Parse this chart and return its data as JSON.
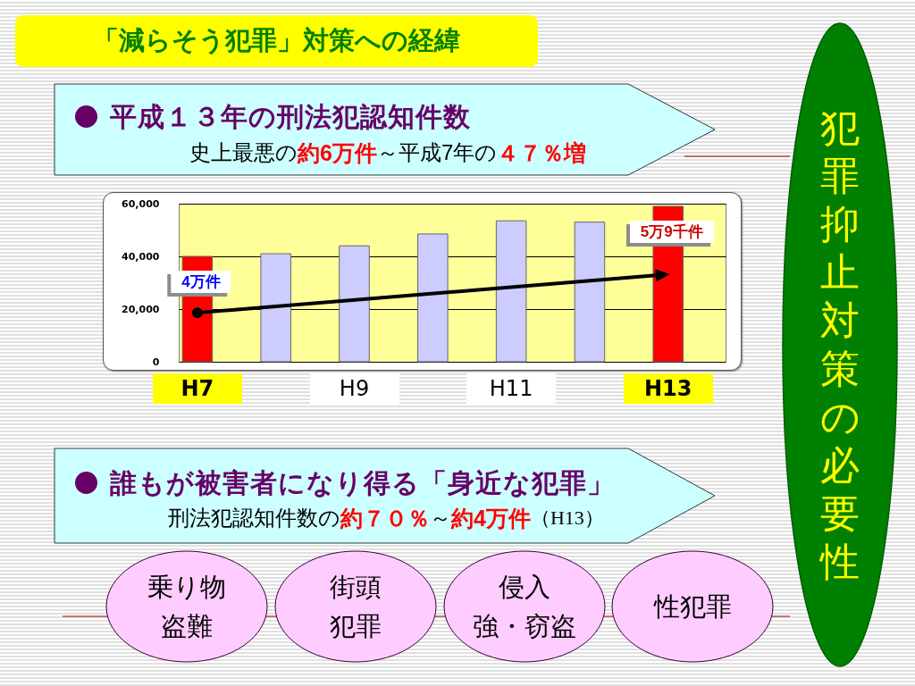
{
  "chart_data": {
    "type": "bar",
    "title": "「減らそう犯罪」対策への経緯",
    "categories": [
      "H7",
      null,
      "H9",
      null,
      "H11",
      null,
      "H13"
    ],
    "values": [
      40000,
      41000,
      44000,
      48500,
      53500,
      53000,
      59000
    ],
    "colors": [
      "#ff0000",
      "#ccccff",
      "#ccccff",
      "#ccccff",
      "#ccccff",
      "#ccccff",
      "#ff0000"
    ],
    "ylim": [
      0,
      60000
    ],
    "yticks": [
      {
        "value": 0,
        "label": "0"
      },
      {
        "value": 20000,
        "label": "20,000"
      },
      {
        "value": 40000,
        "label": "40,000"
      },
      {
        "value": 60000,
        "label": "60,000"
      }
    ],
    "grid": "y",
    "annotations": [
      "平成１３年の刑法犯認知件数",
      "史上最悪の",
      "約6万件",
      "～平成7年の",
      "４７％増",
      "誰もが被害者になり得る「身近な犯罪」",
      "刑法犯認知件数の",
      "約７０％",
      "～",
      "約4万件",
      "（H13）",
      "犯罪抑止対策の必要性",
      "乗り物盗難",
      "街頭犯罪",
      "侵入強・窃盗",
      "性犯罪",
      {
        "text": "4万件",
        "x": "H7",
        "y": 40000
      },
      {
        "text": "5万9千件",
        "x": "H13",
        "y": 59000
      }
    ]
  }
}
